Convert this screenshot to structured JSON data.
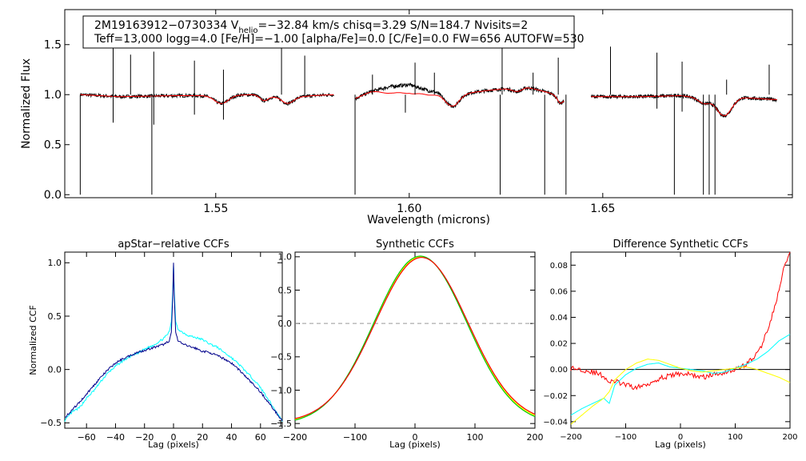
{
  "header": {
    "line1": "2M19163912−0730334  V",
    "vsub": "helio",
    "line1b": "=−32.84 km/s  chisq=3.29  S/N=184.7  Nvisits=2",
    "line2": "Teff=13,000 logg=4.0 [Fe/H]=−1.00 [alpha/Fe]=0.0 [C/Fe]=0.0 FW=656 AUTOFW=530"
  },
  "colors": {
    "observed": "#000000",
    "model": "#ff0000",
    "ccf_total": "#00008b",
    "ccf_visit1": "#00ffff",
    "ccf_visit2": "#ffff00",
    "ccf_visit3": "#ff0000",
    "ccf_visit4": "#00c800",
    "zero_line": "#000000",
    "dashed": "#999999"
  },
  "chart_data": [
    {
      "id": "spectrum",
      "type": "line",
      "title": "",
      "xlabel": "Wavelength (microns)",
      "ylabel": "Normalized Flux",
      "xlim": [
        1.511,
        1.699
      ],
      "ylim": [
        -0.03,
        1.85
      ],
      "xticks": [
        1.55,
        1.6,
        1.65
      ],
      "xtick_labels": [
        "1.55",
        "1.60",
        "1.65"
      ],
      "yticks": [
        0.0,
        0.5,
        1.0,
        1.5
      ],
      "ytick_labels": [
        "0.0",
        "0.5",
        "1.0",
        "1.5"
      ],
      "segments": [
        {
          "range": [
            1.515,
            1.5805
          ],
          "continuum": [
            [
              1.515,
              1.0
            ],
            [
              1.525,
              0.98
            ],
            [
              1.54,
              0.99
            ],
            [
              1.55,
              0.99
            ],
            [
              1.56,
              1.0
            ],
            [
              1.565,
              0.98
            ],
            [
              1.57,
              0.97
            ],
            [
              1.575,
              0.99
            ],
            [
              1.5805,
              1.0
            ]
          ],
          "dips": [
            [
              1.5515,
              0.08,
              0.0025
            ],
            [
              1.5625,
              0.05,
              0.0015
            ],
            [
              1.5685,
              0.06,
              0.002
            ]
          ]
        },
        {
          "range": [
            1.586,
            1.64
          ],
          "continuum": [
            [
              1.586,
              0.96
            ],
            [
              1.59,
              1.03
            ],
            [
              1.595,
              1.08
            ],
            [
              1.6,
              1.1
            ],
            [
              1.605,
              1.04
            ],
            [
              1.612,
              1.0
            ],
            [
              1.62,
              1.04
            ],
            [
              1.63,
              1.08
            ],
            [
              1.636,
              1.02
            ],
            [
              1.64,
              0.96
            ]
          ],
          "dips": [
            [
              1.611,
              0.12,
              0.0025
            ],
            [
              1.628,
              0.04,
              0.002
            ],
            [
              1.639,
              0.06,
              0.001
            ]
          ]
        },
        {
          "range": [
            1.647,
            1.695
          ],
          "continuum": [
            [
              1.647,
              0.98
            ],
            [
              1.66,
              0.98
            ],
            [
              1.67,
              0.99
            ],
            [
              1.675,
              0.97
            ],
            [
              1.68,
              0.93
            ],
            [
              1.686,
              0.97
            ],
            [
              1.695,
              0.95
            ]
          ],
          "dips": [
            [
              1.6815,
              0.15,
              0.0025
            ],
            [
              1.676,
              0.05,
              0.002
            ]
          ]
        }
      ],
      "emission_spikes": [
        [
          1.5235,
          1.47
        ],
        [
          1.528,
          1.4
        ],
        [
          1.534,
          1.43
        ],
        [
          1.5445,
          1.34
        ],
        [
          1.552,
          1.25
        ],
        [
          1.567,
          1.52
        ],
        [
          1.573,
          1.39
        ],
        [
          1.5905,
          1.2
        ],
        [
          1.6015,
          1.32
        ],
        [
          1.6065,
          1.22
        ],
        [
          1.624,
          1.58
        ],
        [
          1.632,
          1.22
        ],
        [
          1.6385,
          1.37
        ],
        [
          1.652,
          1.48
        ],
        [
          1.664,
          1.42
        ],
        [
          1.6705,
          1.33
        ],
        [
          1.682,
          1.15
        ],
        [
          1.693,
          1.3
        ]
      ],
      "absorption_spikes": [
        [
          1.515,
          0.0
        ],
        [
          1.5335,
          0.0
        ],
        [
          1.5235,
          0.72
        ],
        [
          1.534,
          0.7
        ],
        [
          1.5445,
          0.8
        ],
        [
          1.552,
          0.75
        ],
        [
          1.586,
          0.0
        ],
        [
          1.6235,
          0.0
        ],
        [
          1.635,
          0.0
        ],
        [
          1.6405,
          0.0
        ],
        [
          1.599,
          0.82
        ],
        [
          1.6685,
          0.0
        ],
        [
          1.676,
          0.0
        ],
        [
          1.6775,
          0.0
        ],
        [
          1.679,
          0.0
        ],
        [
          1.6705,
          0.83
        ],
        [
          1.664,
          0.86
        ]
      ],
      "model_offsets": [
        [
          1.595,
          -0.06
        ],
        [
          1.6,
          -0.08
        ],
        [
          1.605,
          -0.04
        ]
      ]
    },
    {
      "id": "apstar_ccf",
      "type": "line",
      "title": "apStar−relative CCFs",
      "xlabel": "Lag (pixels)",
      "ylabel": "Normalized CCF",
      "xlim": [
        -75,
        75
      ],
      "ylim": [
        -0.55,
        1.1
      ],
      "xticks": [
        -60,
        -40,
        -20,
        0,
        20,
        40,
        60
      ],
      "xtick_labels": [
        "−60",
        "−40",
        "−20",
        "0",
        "20",
        "40",
        "60"
      ],
      "yticks": [
        -0.5,
        0.0,
        0.5,
        1.0
      ],
      "ytick_labels": [
        "−0.5",
        "0.0",
        "0.5",
        "1.0"
      ],
      "series": [
        {
          "name": "total",
          "color_key": "ccf_total",
          "points": [
            [
              -75,
              -0.45
            ],
            [
              -70,
              -0.38
            ],
            [
              -65,
              -0.31
            ],
            [
              -60,
              -0.23
            ],
            [
              -55,
              -0.15
            ],
            [
              -50,
              -0.07
            ],
            [
              -45,
              0.0
            ],
            [
              -40,
              0.06
            ],
            [
              -35,
              0.1
            ],
            [
              -30,
              0.13
            ],
            [
              -25,
              0.16
            ],
            [
              -20,
              0.18
            ],
            [
              -15,
              0.2
            ],
            [
              -10,
              0.22
            ],
            [
              -6,
              0.24
            ],
            [
              -3,
              0.27
            ],
            [
              -1.5,
              0.35
            ],
            [
              -0.5,
              0.7
            ],
            [
              0,
              1.0
            ],
            [
              0.5,
              0.7
            ],
            [
              1.5,
              0.35
            ],
            [
              3,
              0.27
            ],
            [
              6,
              0.24
            ],
            [
              10,
              0.22
            ],
            [
              15,
              0.2
            ],
            [
              20,
              0.17
            ],
            [
              25,
              0.16
            ],
            [
              30,
              0.13
            ],
            [
              35,
              0.1
            ],
            [
              40,
              0.06
            ],
            [
              45,
              0.0
            ],
            [
              50,
              -0.07
            ],
            [
              55,
              -0.14
            ],
            [
              60,
              -0.21
            ],
            [
              65,
              -0.3
            ],
            [
              70,
              -0.39
            ],
            [
              75,
              -0.48
            ]
          ]
        },
        {
          "name": "visit",
          "color_key": "ccf_visit1",
          "points": [
            [
              -75,
              -0.48
            ],
            [
              -70,
              -0.4
            ],
            [
              -65,
              -0.36
            ],
            [
              -60,
              -0.27
            ],
            [
              -55,
              -0.2
            ],
            [
              -50,
              -0.11
            ],
            [
              -45,
              -0.03
            ],
            [
              -40,
              0.03
            ],
            [
              -35,
              0.08
            ],
            [
              -30,
              0.12
            ],
            [
              -25,
              0.15
            ],
            [
              -20,
              0.19
            ],
            [
              -15,
              0.22
            ],
            [
              -10,
              0.26
            ],
            [
              -6,
              0.3
            ],
            [
              -3,
              0.35
            ],
            [
              -1.5,
              0.45
            ],
            [
              -0.5,
              0.75
            ],
            [
              0,
              0.98
            ],
            [
              0.5,
              0.75
            ],
            [
              1.5,
              0.45
            ],
            [
              3,
              0.38
            ],
            [
              6,
              0.35
            ],
            [
              10,
              0.32
            ],
            [
              15,
              0.3
            ],
            [
              20,
              0.28
            ],
            [
              25,
              0.24
            ],
            [
              30,
              0.21
            ],
            [
              35,
              0.16
            ],
            [
              40,
              0.11
            ],
            [
              45,
              0.05
            ],
            [
              50,
              -0.02
            ],
            [
              55,
              -0.09
            ],
            [
              60,
              -0.17
            ],
            [
              65,
              -0.27
            ],
            [
              70,
              -0.38
            ],
            [
              75,
              -0.48
            ]
          ]
        }
      ]
    },
    {
      "id": "synthetic_ccf",
      "type": "line",
      "title": "Synthetic CCFs",
      "xlabel": "Lag (pixels)",
      "ylabel": "",
      "xlim": [
        -200,
        200
      ],
      "ylim": [
        -1.57,
        1.07
      ],
      "xticks": [
        -200,
        -100,
        0,
        100,
        200
      ],
      "xtick_labels": [
        "−200",
        "−100",
        "0",
        "100",
        "200"
      ],
      "yticks": [
        -1.5,
        -1.0,
        -0.5,
        0.0,
        0.5,
        1.0
      ],
      "ytick_labels": [
        "−1.5",
        "−1.0",
        "−0.5",
        "0.0",
        "0.5",
        "1.0"
      ],
      "dashed_zero": true,
      "series": [
        {
          "name": "visit1",
          "color_key": "ccf_visit2",
          "center": 10,
          "scale": 1.0
        },
        {
          "name": "visit2",
          "color_key": "ccf_visit4",
          "center": 9,
          "scale": 1.01
        },
        {
          "name": "visit3",
          "color_key": "ccf_visit3",
          "center": 11,
          "scale": 0.99
        }
      ]
    },
    {
      "id": "difference_ccf",
      "type": "line",
      "title": "Difference Synthetic CCFs",
      "xlabel": "Lag (pixels)",
      "ylabel": "",
      "xlim": [
        -200,
        200
      ],
      "ylim": [
        -0.045,
        0.09
      ],
      "xticks": [
        -200,
        -100,
        0,
        100,
        200
      ],
      "xtick_labels": [
        "−200",
        "−100",
        "0",
        "100",
        "200"
      ],
      "yticks": [
        -0.04,
        -0.02,
        0.0,
        0.02,
        0.04,
        0.06,
        0.08
      ],
      "ytick_labels": [
        "−0.04",
        "−0.02",
        "0.00",
        "0.02",
        "0.04",
        "0.06",
        "0.08"
      ],
      "zero_line": true,
      "series": [
        {
          "name": "red",
          "color_key": "ccf_visit3",
          "points": [
            [
              -200,
              0.001
            ],
            [
              -180,
              0.0
            ],
            [
              -160,
              -0.002
            ],
            [
              -140,
              -0.005
            ],
            [
              -130,
              -0.01
            ],
            [
              -120,
              -0.009
            ],
            [
              -100,
              -0.012
            ],
            [
              -80,
              -0.014
            ],
            [
              -60,
              -0.011
            ],
            [
              -40,
              -0.007
            ],
            [
              -20,
              -0.005
            ],
            [
              0,
              -0.003
            ],
            [
              20,
              -0.004
            ],
            [
              40,
              -0.006
            ],
            [
              60,
              -0.004
            ],
            [
              80,
              -0.002
            ],
            [
              100,
              0.0
            ],
            [
              120,
              0.004
            ],
            [
              140,
              0.012
            ],
            [
              150,
              0.02
            ],
            [
              160,
              0.032
            ],
            [
              170,
              0.045
            ],
            [
              180,
              0.06
            ],
            [
              190,
              0.08
            ],
            [
              200,
              0.088
            ]
          ]
        },
        {
          "name": "cyan",
          "color_key": "ccf_visit1",
          "points": [
            [
              -200,
              -0.035
            ],
            [
              -180,
              -0.03
            ],
            [
              -160,
              -0.026
            ],
            [
              -140,
              -0.022
            ],
            [
              -130,
              -0.026
            ],
            [
              -120,
              -0.012
            ],
            [
              -100,
              -0.004
            ],
            [
              -80,
              0.001
            ],
            [
              -60,
              0.004
            ],
            [
              -40,
              0.005
            ],
            [
              -20,
              0.002
            ],
            [
              0,
              0.001
            ],
            [
              20,
              0.0
            ],
            [
              40,
              -0.001
            ],
            [
              60,
              -0.003
            ],
            [
              80,
              -0.002
            ],
            [
              100,
              0.001
            ],
            [
              120,
              0.004
            ],
            [
              140,
              0.008
            ],
            [
              160,
              0.014
            ],
            [
              180,
              0.022
            ],
            [
              200,
              0.027
            ]
          ]
        },
        {
          "name": "yellow",
          "color_key": "ccf_visit2",
          "points": [
            [
              -200,
              -0.042
            ],
            [
              -180,
              -0.035
            ],
            [
              -160,
              -0.028
            ],
            [
              -140,
              -0.022
            ],
            [
              -130,
              -0.017
            ],
            [
              -120,
              -0.008
            ],
            [
              -100,
              0.0
            ],
            [
              -80,
              0.005
            ],
            [
              -60,
              0.008
            ],
            [
              -40,
              0.007
            ],
            [
              -20,
              0.004
            ],
            [
              0,
              0.001
            ],
            [
              20,
              -0.001
            ],
            [
              40,
              -0.002
            ],
            [
              60,
              -0.001
            ],
            [
              80,
              0.0
            ],
            [
              100,
              0.001
            ],
            [
              120,
              0.002
            ],
            [
              140,
              0.0
            ],
            [
              160,
              -0.003
            ],
            [
              180,
              -0.006
            ],
            [
              200,
              -0.01
            ]
          ]
        }
      ]
    }
  ]
}
